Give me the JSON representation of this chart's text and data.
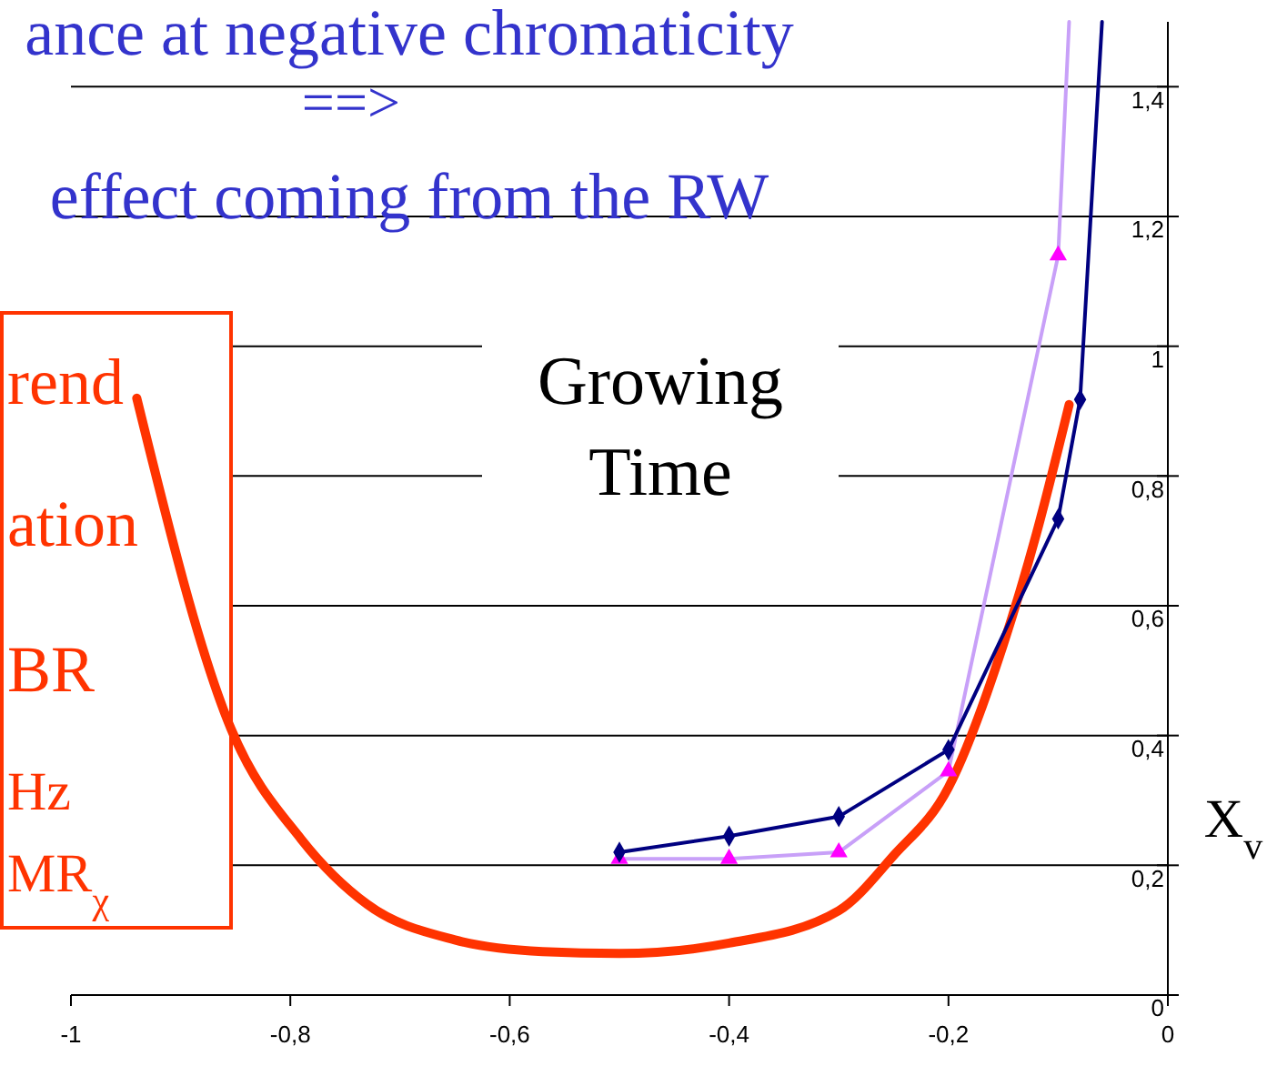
{
  "chart_data": {
    "type": "line",
    "title": "ance at negative chromaticity",
    "subtitle": "==>",
    "ylabel": "X$_{v}$",
    "annotations": [
      "effect coming from the RW",
      "Growing\nTime",
      "rend",
      "ation",
      "BR",
      "Hz",
      "MR$_{χ}$"
    ],
    "xlim": [
      -1,
      0
    ],
    "ylim": [
      0,
      1.5
    ],
    "xticks": [
      -1,
      {
        "value": -0.8,
        "label": "-0,8"
      },
      {
        "value": -0.6,
        "label": "-0,6"
      },
      {
        "value": -0.4,
        "label": "-0,4"
      },
      {
        "value": -0.2,
        "label": "-0,2"
      },
      0
    ],
    "yticks": [
      0,
      {
        "value": 0.2,
        "label": "0,2"
      },
      {
        "value": 0.4,
        "label": "0,4"
      },
      {
        "value": 0.6,
        "label": "0,6"
      },
      {
        "value": 0.8,
        "label": "0,8"
      },
      1,
      {
        "value": 1.2,
        "label": "1,2"
      },
      {
        "value": 1.4,
        "label": "1,4"
      }
    ],
    "grid": "y",
    "series": [
      {
        "color": "#ff3300",
        "marker": "none",
        "x": [
          -0.94,
          -0.854,
          -0.79,
          -0.73,
          -0.65,
          -0.57,
          -0.5,
          -0.4,
          -0.3,
          -0.25,
          -0.2,
          -0.15,
          -0.12,
          -0.09
        ],
        "values": [
          0.92,
          0.41,
          0.24,
          0.14,
          0.085,
          0.067,
          0.064,
          0.08,
          0.13,
          0.215,
          0.32,
          0.54,
          0.71,
          0.91
        ]
      },
      {
        "color": "#c8a0f8",
        "marker": "triangle",
        "x": [
          -0.5,
          -0.4,
          -0.3,
          -0.2,
          -0.1,
          -0.09
        ],
        "values": [
          0.21,
          0.21,
          0.22,
          0.345,
          1.14,
          1.5
        ]
      },
      {
        "color": "#000080",
        "marker": "diamond",
        "x": [
          -0.5,
          -0.4,
          -0.3,
          -0.2,
          -0.1,
          -0.08,
          -0.06
        ],
        "values": [
          0.22,
          0.245,
          0.275,
          0.378,
          0.734,
          0.918,
          1.5
        ]
      }
    ]
  }
}
